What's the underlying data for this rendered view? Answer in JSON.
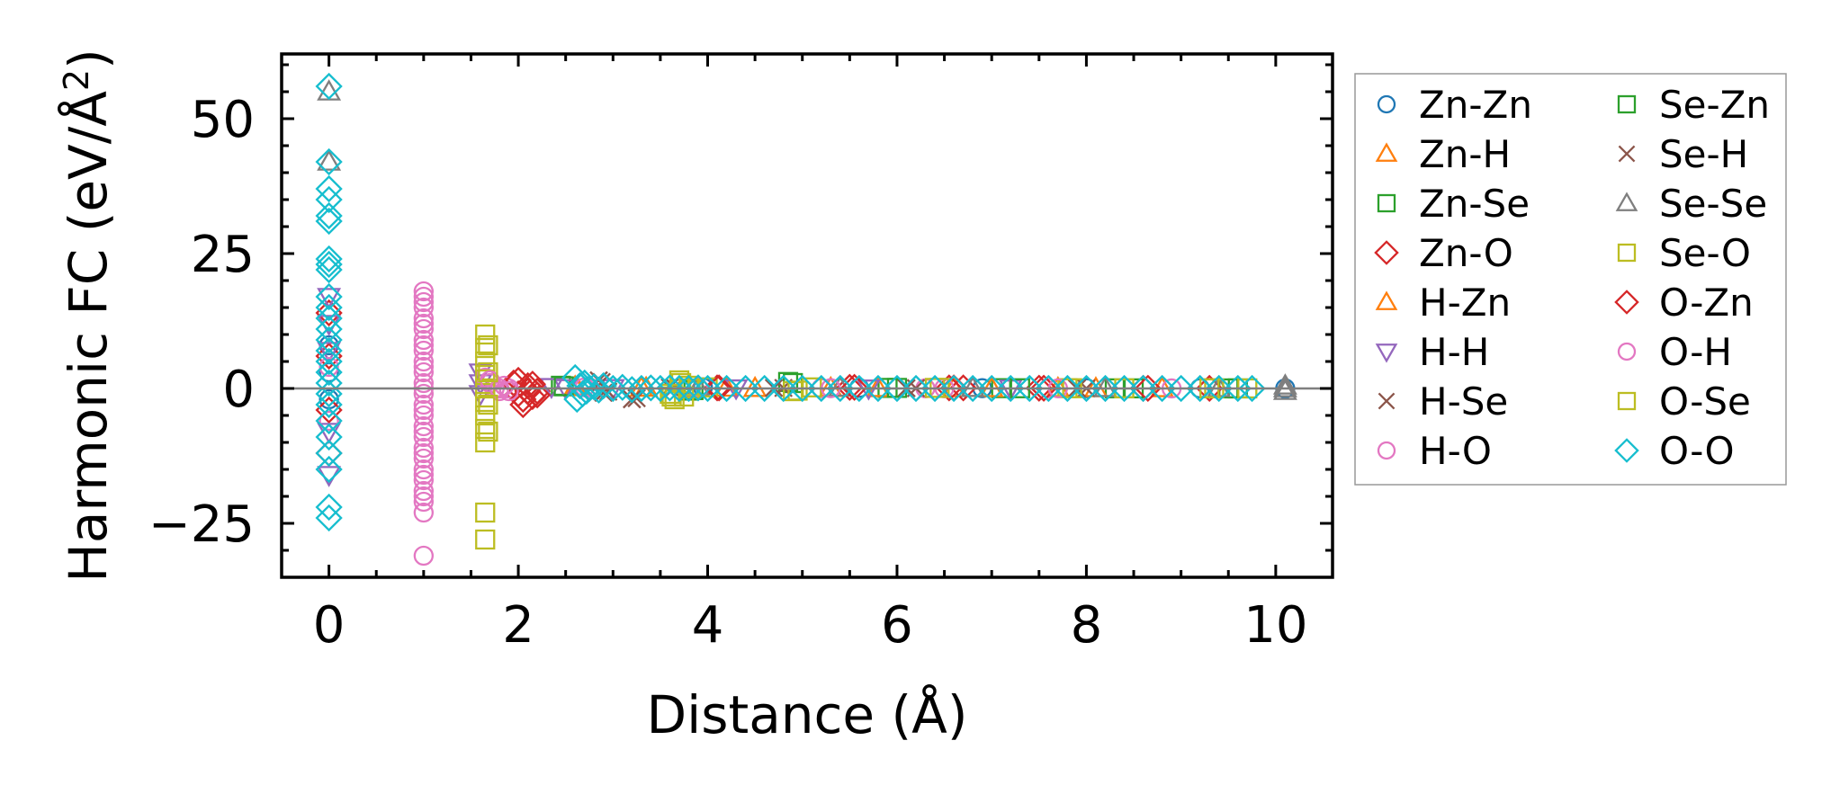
{
  "chart_data": {
    "type": "scatter",
    "xlabel": "Distance (Å)",
    "ylabel_main": "Harmonic FC (eV/Å",
    "ylabel_sup": "2",
    "ylabel_close": ")",
    "xlim": [
      -0.5,
      10.6
    ],
    "ylim": [
      -35,
      62
    ],
    "xticks": [
      0,
      2,
      4,
      6,
      8,
      10
    ],
    "xtick_labels": [
      "0",
      "2",
      "4",
      "6",
      "8",
      "10"
    ],
    "yticks": [
      -25,
      0,
      25,
      50
    ],
    "ytick_labels": [
      "−25",
      "0",
      "25",
      "50"
    ],
    "zero_line": 0,
    "grid": false,
    "legend_position": "right, outside plot",
    "series": [
      {
        "name": "Zn-Zn",
        "marker": "circle",
        "color": "#1f77b4",
        "points": [
          [
            0.0,
            8
          ],
          [
            0.0,
            3
          ],
          [
            0.0,
            -2
          ],
          [
            3.95,
            0.2
          ],
          [
            5.6,
            0.1
          ],
          [
            6.9,
            0.05
          ],
          [
            8.0,
            0.05
          ],
          [
            9.2,
            0.02
          ],
          [
            10.1,
            0.01
          ]
        ]
      },
      {
        "name": "Zn-H",
        "marker": "triangle",
        "color": "#ff7f0e",
        "points": [
          [
            2.6,
            0.3
          ],
          [
            3.3,
            0.1
          ],
          [
            4.2,
            0.1
          ],
          [
            5.3,
            0.05
          ],
          [
            6.6,
            0.02
          ],
          [
            7.7,
            0.02
          ],
          [
            8.8,
            0.01
          ]
        ]
      },
      {
        "name": "Zn-Se",
        "marker": "square",
        "color": "#2ca02c",
        "points": [
          [
            2.45,
            0.5
          ],
          [
            3.8,
            -0.4
          ],
          [
            4.85,
            1.2
          ],
          [
            5.9,
            0.1
          ],
          [
            7.1,
            0.05
          ],
          [
            8.3,
            0.02
          ],
          [
            9.5,
            0.01
          ]
        ]
      },
      {
        "name": "Zn-O",
        "marker": "diamond",
        "color": "#d62728",
        "points": [
          [
            0.0,
            14
          ],
          [
            0.0,
            6
          ],
          [
            0.0,
            -4
          ],
          [
            0.0,
            -12
          ],
          [
            1.95,
            1
          ],
          [
            2.0,
            -1
          ],
          [
            2.05,
            -3
          ],
          [
            2.1,
            0.5
          ],
          [
            2.15,
            -1.5
          ],
          [
            2.2,
            -0.5
          ],
          [
            4.1,
            0.1
          ],
          [
            5.5,
            0.2
          ],
          [
            6.55,
            0.1
          ],
          [
            6.7,
            0.1
          ],
          [
            7.5,
            0.05
          ],
          [
            8.6,
            0.03
          ],
          [
            9.3,
            0.02
          ]
        ]
      },
      {
        "name": "H-Zn",
        "marker": "triangle",
        "color": "#ff7f0e",
        "points": [
          [
            2.62,
            0.2
          ],
          [
            3.35,
            0.1
          ],
          [
            4.5,
            0.05
          ],
          [
            5.8,
            0.03
          ],
          [
            7.0,
            0.02
          ],
          [
            8.1,
            0.01
          ]
        ]
      },
      {
        "name": "H-H",
        "marker": "triangle-down",
        "color": "#9467bd",
        "points": [
          [
            0.0,
            17
          ],
          [
            0.0,
            12
          ],
          [
            0.0,
            7
          ],
          [
            0.0,
            -8
          ],
          [
            0.0,
            -16
          ],
          [
            1.6,
            3
          ],
          [
            1.6,
            1
          ],
          [
            1.6,
            -1
          ],
          [
            2.35,
            0.3
          ],
          [
            2.5,
            0.1
          ],
          [
            3.0,
            0.1
          ],
          [
            4.3,
            0.05
          ],
          [
            5.7,
            0.03
          ],
          [
            7.2,
            0.02
          ]
        ]
      },
      {
        "name": "H-Se",
        "marker": "x",
        "color": "#8c564b",
        "points": [
          [
            2.85,
            1.5
          ],
          [
            2.9,
            -0.8
          ],
          [
            3.2,
            -2
          ],
          [
            3.6,
            0.2
          ],
          [
            4.7,
            0.1
          ],
          [
            6.1,
            0.05
          ],
          [
            7.9,
            0.02
          ]
        ]
      },
      {
        "name": "H-O",
        "marker": "circle",
        "color": "#e377c2",
        "points": [
          [
            0.0,
            4
          ],
          [
            0.0,
            -6
          ],
          [
            1.0,
            18
          ],
          [
            1.0,
            17
          ],
          [
            1.0,
            15
          ],
          [
            1.0,
            13
          ],
          [
            1.0,
            11
          ],
          [
            1.0,
            9
          ],
          [
            1.0,
            7
          ],
          [
            1.0,
            5
          ],
          [
            1.0,
            3
          ],
          [
            1.0,
            1
          ],
          [
            1.0,
            -1
          ],
          [
            1.0,
            -3
          ],
          [
            1.0,
            -5
          ],
          [
            1.0,
            -7
          ],
          [
            1.0,
            -9
          ],
          [
            1.0,
            -11
          ],
          [
            1.0,
            -13
          ],
          [
            1.0,
            -15
          ],
          [
            1.0,
            -17
          ],
          [
            1.0,
            -19
          ],
          [
            1.0,
            -21
          ],
          [
            1.0,
            -23
          ],
          [
            1.0,
            -31
          ],
          [
            1.65,
            2
          ],
          [
            1.7,
            1
          ],
          [
            1.75,
            0
          ],
          [
            1.8,
            -0.5
          ],
          [
            1.85,
            0.5
          ],
          [
            1.9,
            0
          ],
          [
            2.7,
            0.2
          ],
          [
            3.8,
            0.1
          ],
          [
            5.2,
            0.05
          ],
          [
            6.3,
            0.03
          ],
          [
            7.6,
            0.02
          ],
          [
            8.9,
            0.01
          ]
        ]
      },
      {
        "name": "Se-Zn",
        "marker": "square",
        "color": "#2ca02c",
        "points": [
          [
            2.48,
            0.4
          ],
          [
            3.85,
            -0.3
          ],
          [
            4.9,
            1.0
          ],
          [
            6.0,
            0.1
          ],
          [
            7.3,
            0.04
          ],
          [
            8.5,
            0.02
          ],
          [
            9.6,
            0.01
          ]
        ]
      },
      {
        "name": "Se-H",
        "marker": "x",
        "color": "#8c564b",
        "points": [
          [
            2.88,
            1.2
          ],
          [
            2.95,
            -0.6
          ],
          [
            3.25,
            -1.8
          ],
          [
            3.65,
            0.2
          ],
          [
            4.8,
            0.1
          ],
          [
            6.2,
            0.05
          ],
          [
            8.0,
            0.02
          ]
        ]
      },
      {
        "name": "Se-Se",
        "marker": "triangle",
        "color": "#7f7f7f",
        "points": [
          [
            0.0,
            55
          ],
          [
            0.0,
            42
          ],
          [
            3.9,
            0.2
          ],
          [
            5.4,
            0.1
          ],
          [
            6.8,
            0.05
          ],
          [
            8.2,
            0.03
          ],
          [
            9.4,
            0.02
          ],
          [
            10.1,
            0.5
          ],
          [
            10.1,
            0
          ],
          [
            10.1,
            -0.5
          ]
        ]
      },
      {
        "name": "Se-O",
        "marker": "square",
        "color": "#bcbd22",
        "points": [
          [
            1.65,
            10
          ],
          [
            1.65,
            7.5
          ],
          [
            1.65,
            5
          ],
          [
            1.65,
            2.5
          ],
          [
            1.65,
            0
          ],
          [
            1.65,
            -2.5
          ],
          [
            1.65,
            -5
          ],
          [
            1.65,
            -7.5
          ],
          [
            1.65,
            -10
          ],
          [
            1.65,
            -23
          ],
          [
            1.65,
            -28
          ],
          [
            3.6,
            -1
          ],
          [
            3.65,
            -2
          ],
          [
            3.7,
            1.5
          ],
          [
            3.75,
            -1.5
          ],
          [
            3.8,
            0.5
          ],
          [
            4.0,
            0.2
          ],
          [
            4.9,
            -0.5
          ],
          [
            5.1,
            0.2
          ],
          [
            6.4,
            0.1
          ],
          [
            7.8,
            0.05
          ],
          [
            8.4,
            0.02
          ],
          [
            9.3,
            0.02
          ],
          [
            9.7,
            0.01
          ]
        ]
      },
      {
        "name": "O-Zn",
        "marker": "diamond",
        "color": "#d62728",
        "points": [
          [
            2.0,
            1.5
          ],
          [
            2.05,
            -2
          ],
          [
            2.1,
            -0.5
          ],
          [
            2.15,
            0.8
          ],
          [
            2.2,
            -1.2
          ],
          [
            4.12,
            0.1
          ],
          [
            5.55,
            0.2
          ],
          [
            6.6,
            0.1
          ],
          [
            7.55,
            0.05
          ],
          [
            8.65,
            0.03
          ]
        ]
      },
      {
        "name": "O-H",
        "marker": "circle",
        "color": "#e377c2",
        "points": [
          [
            1.0,
            16
          ],
          [
            1.0,
            12
          ],
          [
            1.0,
            8
          ],
          [
            1.0,
            4
          ],
          [
            1.0,
            0
          ],
          [
            1.0,
            -4
          ],
          [
            1.0,
            -8
          ],
          [
            1.0,
            -12
          ],
          [
            1.0,
            -16
          ],
          [
            1.0,
            -20
          ],
          [
            1.7,
            1.5
          ],
          [
            1.8,
            0
          ],
          [
            1.9,
            -0.5
          ],
          [
            2.75,
            0.2
          ],
          [
            3.9,
            0.1
          ],
          [
            5.3,
            0.05
          ],
          [
            6.5,
            0.03
          ],
          [
            7.7,
            0.02
          ]
        ]
      },
      {
        "name": "O-Se",
        "marker": "square",
        "color": "#bcbd22",
        "points": [
          [
            1.68,
            8
          ],
          [
            1.68,
            3
          ],
          [
            1.68,
            -3
          ],
          [
            1.68,
            -8
          ],
          [
            3.62,
            -1.5
          ],
          [
            3.72,
            1
          ],
          [
            3.82,
            0
          ],
          [
            4.95,
            -0.4
          ],
          [
            6.45,
            0.1
          ],
          [
            7.85,
            0.04
          ],
          [
            9.35,
            0.02
          ]
        ]
      },
      {
        "name": "O-O",
        "marker": "diamond",
        "color": "#17becf",
        "points": [
          [
            0.0,
            56
          ],
          [
            0.0,
            42
          ],
          [
            0.0,
            37
          ],
          [
            0.0,
            35
          ],
          [
            0.0,
            32
          ],
          [
            0.0,
            31
          ],
          [
            0.0,
            24
          ],
          [
            0.0,
            23
          ],
          [
            0.0,
            22
          ],
          [
            0.0,
            17
          ],
          [
            0.0,
            15
          ],
          [
            0.0,
            13
          ],
          [
            0.0,
            11
          ],
          [
            0.0,
            9
          ],
          [
            0.0,
            7
          ],
          [
            0.0,
            5
          ],
          [
            0.0,
            3
          ],
          [
            0.0,
            1
          ],
          [
            0.0,
            -1
          ],
          [
            0.0,
            -3
          ],
          [
            0.0,
            -6
          ],
          [
            0.0,
            -9
          ],
          [
            0.0,
            -12
          ],
          [
            0.0,
            -15
          ],
          [
            0.0,
            -22
          ],
          [
            0.0,
            -24
          ],
          [
            2.6,
            2
          ],
          [
            2.62,
            -2
          ],
          [
            2.65,
            0.5
          ],
          [
            2.68,
            -1
          ],
          [
            2.7,
            1
          ],
          [
            2.72,
            -0.5
          ],
          [
            2.75,
            0
          ],
          [
            2.8,
            0.3
          ],
          [
            2.85,
            -0.3
          ],
          [
            2.9,
            0.5
          ],
          [
            3.0,
            0
          ],
          [
            3.1,
            0.2
          ],
          [
            3.2,
            -0.2
          ],
          [
            3.3,
            0
          ],
          [
            3.4,
            0.1
          ],
          [
            3.5,
            0
          ],
          [
            3.6,
            0.1
          ],
          [
            3.7,
            0
          ],
          [
            3.8,
            0
          ],
          [
            3.9,
            0.1
          ],
          [
            4.0,
            0
          ],
          [
            4.2,
            0
          ],
          [
            4.4,
            0
          ],
          [
            4.6,
            0
          ],
          [
            4.8,
            0
          ],
          [
            5.0,
            0
          ],
          [
            5.2,
            0
          ],
          [
            5.4,
            0
          ],
          [
            5.6,
            0
          ],
          [
            5.8,
            0
          ],
          [
            6.0,
            0
          ],
          [
            6.2,
            0
          ],
          [
            6.4,
            0
          ],
          [
            6.6,
            0
          ],
          [
            6.8,
            0
          ],
          [
            7.0,
            0
          ],
          [
            7.2,
            0
          ],
          [
            7.4,
            0
          ],
          [
            7.6,
            0
          ],
          [
            7.8,
            0
          ],
          [
            8.0,
            0
          ],
          [
            8.2,
            0
          ],
          [
            8.4,
            0
          ],
          [
            8.6,
            0
          ],
          [
            8.8,
            0
          ],
          [
            9.0,
            0
          ],
          [
            9.2,
            0
          ],
          [
            9.4,
            0
          ],
          [
            9.6,
            0
          ],
          [
            9.75,
            0
          ]
        ]
      }
    ]
  }
}
